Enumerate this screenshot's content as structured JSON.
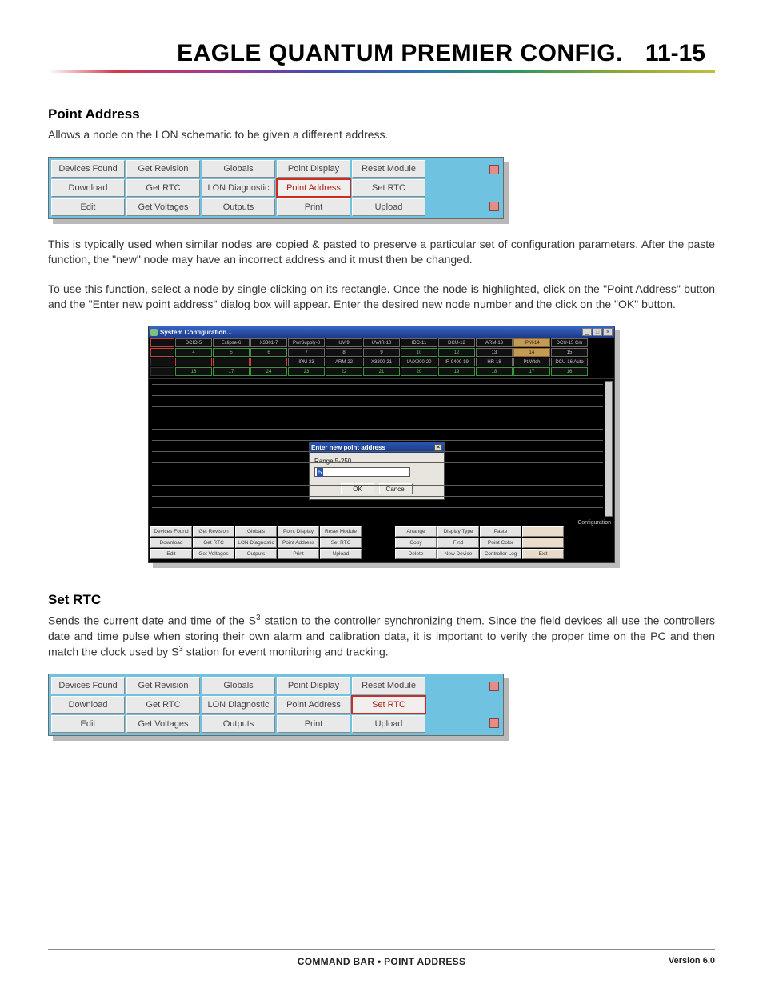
{
  "page": {
    "title": "EAGLE QUANTUM PREMIER CONFIG.",
    "number": "11-15",
    "footer_center": "COMMAND BAR • POINT ADDRESS",
    "footer_right": "Version 6.0"
  },
  "fonts": {
    "heading_size_pt": 17,
    "title_size_pt": 30,
    "body_size_pt": 14
  },
  "colors": {
    "cmdbar_bg": "#6fc3e0",
    "cmdbar_cell_bg": "#e9e9e9",
    "highlight_border": "#d12a1e",
    "screenshot_bg": "#000000",
    "titlebar_gradient_top": "#3a66c4",
    "titlebar_gradient_bottom": "#1a3a8c",
    "dialog_bg": "#e8e5df",
    "node_tan": "#c49a55",
    "spacer_marker": "#e78b84"
  },
  "section1": {
    "heading": "Point Address",
    "intro": "Allows a node on the LON schematic to be given a different address.",
    "para2": "This is typically used when similar nodes are copied &  pasted to preserve a particular set of configuration parameters.  After the paste function, the \"new\" node may have an incorrect address and it must then be changed.",
    "para3": "To use this function, select a node by single-clicking on its rectangle.  Once the node is highlighted, click on the \"Point Address\" button and the \"Enter new point address\" dialog box will appear.  Enter the desired new node number and the click on the \"OK\" button."
  },
  "cmdbar1": {
    "highlight_index": 8,
    "cells": [
      "Devices Found",
      "Get Revision",
      "Globals",
      "Point Display",
      "Reset Module",
      "Download",
      "Get RTC",
      "LON Diagnostic",
      "Point Address",
      "Set RTC",
      "Edit",
      "Get Voltages",
      "Outputs",
      "Print",
      "Upload"
    ]
  },
  "cmdbar2": {
    "highlight_index": 9,
    "cells": [
      "Devices Found",
      "Get Revision",
      "Globals",
      "Point Display",
      "Reset Module",
      "Download",
      "Get RTC",
      "LON Diagnostic",
      "Point Address",
      "Set RTC",
      "Edit",
      "Get Voltages",
      "Outputs",
      "Print",
      "Upload"
    ]
  },
  "screenshot": {
    "window_title": "System Configuration...",
    "titlebar_buttons": [
      "_",
      "□",
      "×"
    ],
    "node_row1": [
      {
        "label": "",
        "cls": "red"
      },
      {
        "label": "DCIO-5",
        "cls": ""
      },
      {
        "label": "Eclipse-6",
        "cls": ""
      },
      {
        "label": "X3301-7",
        "cls": ""
      },
      {
        "label": "PwrSupply-8",
        "cls": ""
      },
      {
        "label": "UV-9",
        "cls": ""
      },
      {
        "label": "UV/IR-10",
        "cls": ""
      },
      {
        "label": "IDC-11",
        "cls": ""
      },
      {
        "label": "DCU-12",
        "cls": ""
      },
      {
        "label": "ARM-13",
        "cls": ""
      },
      {
        "label": "IPM-14",
        "cls": "tan"
      },
      {
        "label": "DCU-15 Cm",
        "cls": ""
      }
    ],
    "node_row2": [
      {
        "label": "",
        "cls": "red"
      },
      {
        "label": "4",
        "cls": "green"
      },
      {
        "label": "5",
        "cls": "green"
      },
      {
        "label": "6",
        "cls": "green"
      },
      {
        "label": "7",
        "cls": ""
      },
      {
        "label": "8",
        "cls": ""
      },
      {
        "label": "9",
        "cls": ""
      },
      {
        "label": "10",
        "cls": "green"
      },
      {
        "label": "12",
        "cls": "green"
      },
      {
        "label": "13",
        "cls": ""
      },
      {
        "label": "14",
        "cls": "tan"
      },
      {
        "label": "15",
        "cls": ""
      }
    ],
    "node_row3": [
      {
        "label": "",
        "cls": "blank"
      },
      {
        "label": "",
        "cls": "red"
      },
      {
        "label": "",
        "cls": "red"
      },
      {
        "label": "",
        "cls": "red"
      },
      {
        "label": "IPM-23",
        "cls": ""
      },
      {
        "label": "ARM-22",
        "cls": ""
      },
      {
        "label": "X3200-21",
        "cls": ""
      },
      {
        "label": "UVX200-20",
        "cls": ""
      },
      {
        "label": "IR 9400-19",
        "cls": ""
      },
      {
        "label": "HR-18",
        "cls": ""
      },
      {
        "label": "Pt.Wtch",
        "cls": ""
      },
      {
        "label": "DCU-16 Auto",
        "cls": ""
      }
    ],
    "node_row4": [
      {
        "label": "",
        "cls": "blank"
      },
      {
        "label": "16",
        "cls": "green"
      },
      {
        "label": "17",
        "cls": "green"
      },
      {
        "label": "24",
        "cls": "green"
      },
      {
        "label": "23",
        "cls": "green"
      },
      {
        "label": "22",
        "cls": "green"
      },
      {
        "label": "21",
        "cls": "green"
      },
      {
        "label": "20",
        "cls": "green"
      },
      {
        "label": "19",
        "cls": "green"
      },
      {
        "label": "18",
        "cls": "green"
      },
      {
        "label": "17",
        "cls": "green"
      },
      {
        "label": "16",
        "cls": "green"
      }
    ],
    "grid_row_count": 12,
    "dialog": {
      "title": "Enter new point address",
      "range": "Range 5-250",
      "value": "5",
      "ok": "OK",
      "cancel": "Cancel",
      "close": "×"
    },
    "config_label": "Configuration",
    "bottom_rows": {
      "left": [
        "Devices Found",
        "Get Revision",
        "Globals",
        "Point Display",
        "Reset Module",
        "Download",
        "Get RTC",
        "LON Diagnostic",
        "Point Address",
        "Set RTC",
        "Edit",
        "Get Voltages",
        "Outputs",
        "Print",
        "Upload"
      ],
      "right_row1": [
        "Arrange",
        "Display Type",
        "Paste",
        ""
      ],
      "right_row2": [
        "Copy",
        "Find",
        "Point Color",
        ""
      ],
      "right_row3": [
        "Delete",
        "New Device",
        "Controller Log",
        "Exit"
      ]
    }
  },
  "section2": {
    "heading": "Set RTC",
    "para_a": "Sends the current date and time of the S",
    "para_b": " station to the controller synchronizing them.  Since the field devices all use the controllers date and time pulse when storing their own alarm and calibration data, it is important to verify the proper time on the PC and then match the clock used by S",
    "para_c": " station for event monitoring and tracking.",
    "sup": "3"
  }
}
